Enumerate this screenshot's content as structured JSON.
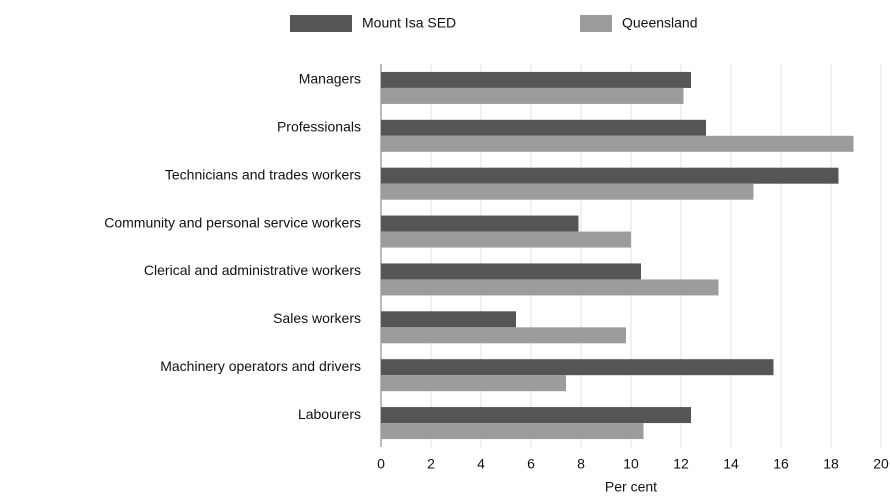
{
  "chart_data": {
    "type": "bar",
    "orientation": "horizontal",
    "x_label": "Per cent",
    "categories": [
      "Managers",
      "Professionals",
      "Technicians and trades workers",
      "Community and personal service workers",
      "Clerical and administrative workers",
      "Sales workers",
      "Machinery operators and drivers",
      "Labourers"
    ],
    "series": [
      {
        "name": "Mount Isa SED",
        "color": "#555555",
        "values": [
          12.4,
          13.0,
          18.3,
          7.9,
          10.4,
          5.4,
          15.7,
          12.4
        ]
      },
      {
        "name": "Queensland",
        "color": "#9c9c9c",
        "values": [
          12.1,
          18.9,
          14.9,
          10.0,
          13.5,
          9.8,
          7.4,
          10.5
        ]
      }
    ],
    "xlim": [
      0,
      20
    ],
    "xticks": [
      0,
      2,
      4,
      6,
      8,
      10,
      12,
      14,
      16,
      18,
      20
    ],
    "grid": true,
    "legend": "top"
  }
}
